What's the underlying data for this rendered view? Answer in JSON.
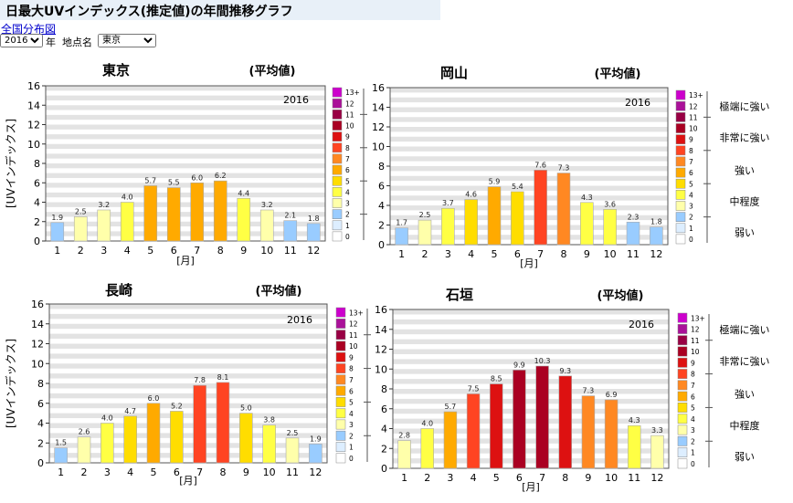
{
  "page": {
    "title": "日最大UVインデックス(推定値)の年間推移グラフ",
    "map_link": "全国分布図",
    "year_selected": "2016",
    "year_suffix": "年",
    "location_label": "地点名",
    "location_selected": "東京"
  },
  "legend_levels": [
    {
      "label": "13+",
      "color": "#cc00cc"
    },
    {
      "label": "12",
      "color": "#aa1199"
    },
    {
      "label": "11",
      "color": "#990044"
    },
    {
      "label": "10",
      "color": "#aa0022"
    },
    {
      "label": "9",
      "color": "#dd1111"
    },
    {
      "label": "8",
      "color": "#ff4422"
    },
    {
      "label": "7",
      "color": "#ff8822"
    },
    {
      "label": "6",
      "color": "#ffaa00"
    },
    {
      "label": "5",
      "color": "#ffdd00"
    },
    {
      "label": "4",
      "color": "#ffff44"
    },
    {
      "label": "3",
      "color": "#ffffaa"
    },
    {
      "label": "2",
      "color": "#99ccff"
    },
    {
      "label": "1",
      "color": "#ddeeff"
    },
    {
      "label": "0",
      "color": "#ffffff"
    }
  ],
  "legend_categories": [
    "極端に強い",
    "非常に強い",
    "強い",
    "中程度",
    "弱い"
  ],
  "chart_data": [
    {
      "type": "bar",
      "title": "東京",
      "subtitle": "(平均値)",
      "year": "2016",
      "ylabel": "[UVインデックス]",
      "xlabel": "[月]",
      "ylim": [
        0,
        16
      ],
      "yticks": [
        0,
        2,
        4,
        6,
        8,
        10,
        12,
        14,
        16
      ],
      "categories": [
        "1",
        "2",
        "3",
        "4",
        "5",
        "6",
        "7",
        "8",
        "9",
        "10",
        "11",
        "12"
      ],
      "values": [
        1.9,
        2.5,
        3.2,
        4.0,
        5.7,
        5.5,
        6.0,
        6.2,
        4.4,
        3.2,
        2.1,
        1.8
      ],
      "value_labels": [
        "1.9",
        "2.5",
        "3.2",
        "4.0",
        "5.7",
        "5.5",
        "6.0",
        "6.2",
        "4.4",
        "3.2",
        "2.1",
        "1.8"
      ],
      "grid": true,
      "legend_position": "right"
    },
    {
      "type": "bar",
      "title": "岡山",
      "subtitle": "(平均値)",
      "year": "2016",
      "ylabel": "",
      "xlabel": "[月]",
      "ylim": [
        0,
        16
      ],
      "yticks": [
        0,
        2,
        4,
        6,
        8,
        10,
        12,
        14,
        16
      ],
      "categories": [
        "1",
        "2",
        "3",
        "4",
        "5",
        "6",
        "7",
        "8",
        "9",
        "10",
        "11",
        "12"
      ],
      "values": [
        1.7,
        2.5,
        3.7,
        4.6,
        5.9,
        5.4,
        7.6,
        7.3,
        4.3,
        3.6,
        2.3,
        1.8
      ],
      "value_labels": [
        "1.7",
        "2.5",
        "3.7",
        "4.6",
        "5.9",
        "5.4",
        "7.6",
        "7.3",
        "4.3",
        "3.6",
        "2.3",
        "1.8"
      ],
      "grid": true,
      "legend_position": "right"
    },
    {
      "type": "bar",
      "title": "長崎",
      "subtitle": "(平均値)",
      "year": "2016",
      "ylabel": "[UVインデックス]",
      "xlabel": "[月]",
      "ylim": [
        0,
        16
      ],
      "yticks": [
        0,
        2,
        4,
        6,
        8,
        10,
        12,
        14,
        16
      ],
      "categories": [
        "1",
        "2",
        "3",
        "4",
        "5",
        "6",
        "7",
        "8",
        "9",
        "10",
        "11",
        "12"
      ],
      "values": [
        1.5,
        2.6,
        4.0,
        4.7,
        6.0,
        5.2,
        7.8,
        8.1,
        5.0,
        3.8,
        2.5,
        1.9
      ],
      "value_labels": [
        "1.5",
        "2.6",
        "4.0",
        "4.7",
        "6.0",
        "5.2",
        "7.8",
        "8.1",
        "5.0",
        "3.8",
        "2.5",
        "1.9"
      ],
      "grid": true,
      "legend_position": "right"
    },
    {
      "type": "bar",
      "title": "石垣",
      "subtitle": "(平均値)",
      "year": "2016",
      "ylabel": "",
      "xlabel": "[月]",
      "ylim": [
        0,
        16
      ],
      "yticks": [
        0,
        2,
        4,
        6,
        8,
        10,
        12,
        14,
        16
      ],
      "categories": [
        "1",
        "2",
        "3",
        "4",
        "5",
        "6",
        "7",
        "8",
        "9",
        "10",
        "11",
        "12"
      ],
      "values": [
        2.8,
        4.0,
        5.7,
        7.5,
        8.5,
        9.9,
        10.3,
        9.3,
        7.3,
        6.9,
        4.3,
        3.3
      ],
      "value_labels": [
        "2.8",
        "4.0",
        "5.7",
        "7.5",
        "8.5",
        "9.9",
        "10.3",
        "9.3",
        "7.3",
        "6.9",
        "4.3",
        "3.3"
      ],
      "grid": true,
      "legend_position": "right"
    }
  ]
}
